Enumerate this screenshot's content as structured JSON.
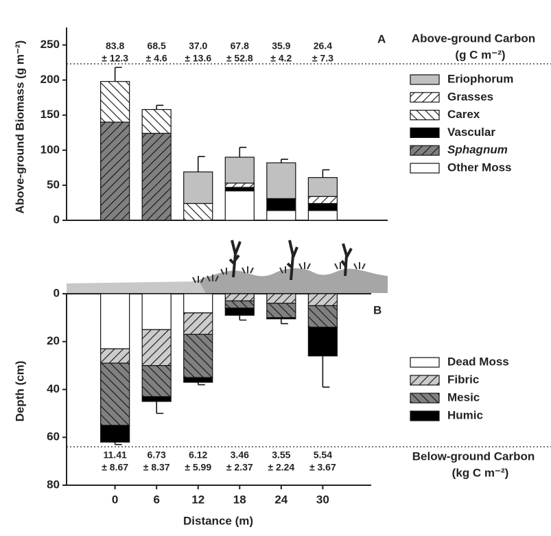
{
  "chart_data": [
    {
      "type": "bar",
      "stacked": true,
      "panel": "A",
      "ylabel": "Above-ground Biomass (g m⁻²)",
      "x": [
        0,
        6,
        12,
        18,
        24,
        30
      ],
      "xlim": [
        -7,
        37
      ],
      "ylim": [
        0,
        275
      ],
      "yticks": [
        0,
        50,
        100,
        150,
        200,
        250
      ],
      "reversed": false,
      "series": [
        {
          "name": "Other Moss",
          "color": "#ffffff",
          "hatch": null,
          "italic": false,
          "values": [
            0,
            0,
            0,
            42,
            14,
            14
          ]
        },
        {
          "name": "Sphagnum",
          "color": "#808080",
          "hatch": "/",
          "italic": true,
          "values": [
            140,
            124,
            0,
            0,
            0,
            0
          ]
        },
        {
          "name": "Vascular",
          "color": "#000000",
          "hatch": null,
          "italic": false,
          "values": [
            0,
            0,
            0,
            5,
            17,
            10
          ]
        },
        {
          "name": "Carex",
          "color": "#ffffff",
          "hatch": "\\",
          "italic": false,
          "values": [
            58,
            34,
            24,
            0,
            0,
            0
          ]
        },
        {
          "name": "Grasses",
          "color": "#ffffff",
          "hatch": "/",
          "italic": false,
          "values": [
            0,
            0,
            0,
            6,
            0,
            10
          ]
        },
        {
          "name": "Eriophorum",
          "color": "#c0c0c0",
          "hatch": null,
          "italic": false,
          "values": [
            0,
            0,
            45,
            37,
            51,
            27
          ]
        }
      ],
      "errors": [
        20,
        6,
        22,
        14,
        5,
        11
      ],
      "annotation": {
        "title": "Above-ground Carbon",
        "unit": "(g C m⁻²)",
        "means": [
          "83.8",
          "68.5",
          "37.0",
          "67.8",
          "35.9",
          "26.4"
        ],
        "sds": [
          "± 12.3",
          "± 4.6",
          "± 13.6",
          "± 52.8",
          "± 4.2",
          "± 7.3"
        ]
      }
    },
    {
      "type": "bar",
      "stacked": true,
      "panel": "B",
      "ylabel": "Depth (cm)",
      "xlabel": "Distance (m)",
      "x": [
        0,
        6,
        12,
        18,
        24,
        30
      ],
      "xlim": [
        -7,
        37
      ],
      "xticks": [
        0,
        6,
        12,
        18,
        24,
        30
      ],
      "ylim": [
        0,
        80
      ],
      "yticks": [
        0,
        20,
        40,
        60,
        80
      ],
      "reversed": true,
      "series": [
        {
          "name": "Dead Moss",
          "color": "#ffffff",
          "hatch": null,
          "italic": false,
          "values": [
            23,
            15,
            8,
            0,
            0,
            0
          ]
        },
        {
          "name": "Fibric",
          "color": "#cccccc",
          "hatch": "/",
          "italic": false,
          "values": [
            6,
            15,
            9,
            3,
            4,
            5
          ]
        },
        {
          "name": "Mesic",
          "color": "#808080",
          "hatch": "\\",
          "italic": false,
          "values": [
            26,
            13,
            18,
            3,
            6,
            9
          ]
        },
        {
          "name": "Humic",
          "color": "#000000",
          "hatch": null,
          "italic": false,
          "values": [
            7,
            2,
            2,
            3,
            0.5,
            12
          ]
        }
      ],
      "errors": [
        1,
        5,
        1,
        2,
        2,
        13
      ],
      "annotation": {
        "title": "Below-ground Carbon",
        "unit": "(kg C m⁻²)",
        "means": [
          "11.41",
          "6.73",
          "6.12",
          "3.46",
          "3.55",
          "5.54"
        ],
        "sds": [
          "± 8.67",
          "± 8.37",
          "± 5.99",
          "± 2.37",
          "± 2.24",
          "± 3.67"
        ]
      }
    }
  ]
}
